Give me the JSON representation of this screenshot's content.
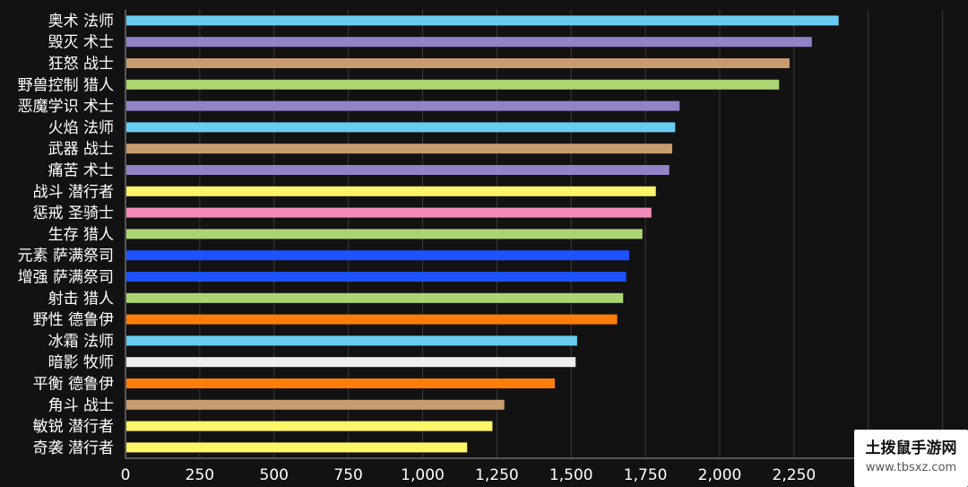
{
  "chart_data": {
    "type": "bar",
    "orientation": "horizontal",
    "categories": [
      "奥术 法师",
      "毁灭 术士",
      "狂怒 战士",
      "野兽控制 猎人",
      "恶魔学识 术士",
      "火焰 法师",
      "武器 战士",
      "痛苦 术士",
      "战斗 潜行者",
      "惩戒 圣骑士",
      "生存 猎人",
      "元素 萨满祭司",
      "增强 萨满祭司",
      "射击 猎人",
      "野性 德鲁伊",
      "冰霜 法师",
      "暗影 牧师",
      "平衡 德鲁伊",
      "角斗 战士",
      "敏锐 潜行者",
      "奇袭 潜行者"
    ],
    "values": [
      2400,
      2310,
      2235,
      2200,
      1865,
      1850,
      1840,
      1830,
      1785,
      1770,
      1740,
      1695,
      1685,
      1675,
      1655,
      1520,
      1515,
      1445,
      1275,
      1235,
      1150
    ],
    "colors": [
      "#69ccf0",
      "#9482c9",
      "#c79c6e",
      "#abd473",
      "#9482c9",
      "#69ccf0",
      "#c79c6e",
      "#9482c9",
      "#fff569",
      "#f58cba",
      "#abd473",
      "#1f52ff",
      "#1f52ff",
      "#abd473",
      "#ff7d0a",
      "#69ccf0",
      "#eeeeee",
      "#ff7d0a",
      "#c79c6e",
      "#fff569",
      "#fff569"
    ],
    "x_ticks": [
      0,
      250,
      500,
      750,
      1000,
      1250,
      1500,
      1750,
      2000,
      2250
    ],
    "x_tick_labels": [
      "0",
      "250",
      "500",
      "750",
      "1,000",
      "1,250",
      "1,500",
      "1,750",
      "2,000",
      "2,250"
    ],
    "xlim": [
      0,
      2750
    ],
    "grid": true,
    "title": "",
    "xlabel": "",
    "ylabel": ""
  },
  "watermark": {
    "title": "土拨鼠手游网",
    "url": "www.tbsxz.com"
  }
}
